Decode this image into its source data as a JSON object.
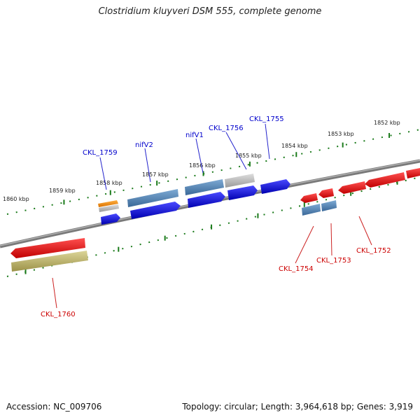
{
  "title": "Clostridium kluyveri DSM 555, complete genome",
  "footer": {
    "accession": "Accession: NC_009706",
    "topology": "Topology: circular; Length: 3,964,618 bp; Genes: 3,919"
  },
  "ruler": {
    "outer": [
      "1860 kbp",
      "1859 kbp",
      "1858 kbp",
      "1857 kbp",
      "1856 kbp",
      "1855 kbp",
      "1854 kbp",
      "1853 kbp",
      "1852 kbp"
    ]
  },
  "genes": {
    "forward": [
      "CKL_1759",
      "nifV2",
      "nifV1",
      "CKL_1756",
      "CKL_1755"
    ],
    "reverse": [
      "CKL_1760",
      "CKL_1754",
      "CKL_1753",
      "CKL_1752"
    ]
  },
  "colors": {
    "forward_label": "#0000cc",
    "reverse_label": "#cc0000",
    "tick": "#1a7a1a",
    "backbone": "#777777",
    "cds_blue": "#1010e0",
    "cds_steel": "#4f84b8",
    "cds_gray": "#b5b5b5",
    "cds_orange": "#f08c00",
    "cds_red": "#e81010",
    "cds_olive": "#bcb36a"
  }
}
